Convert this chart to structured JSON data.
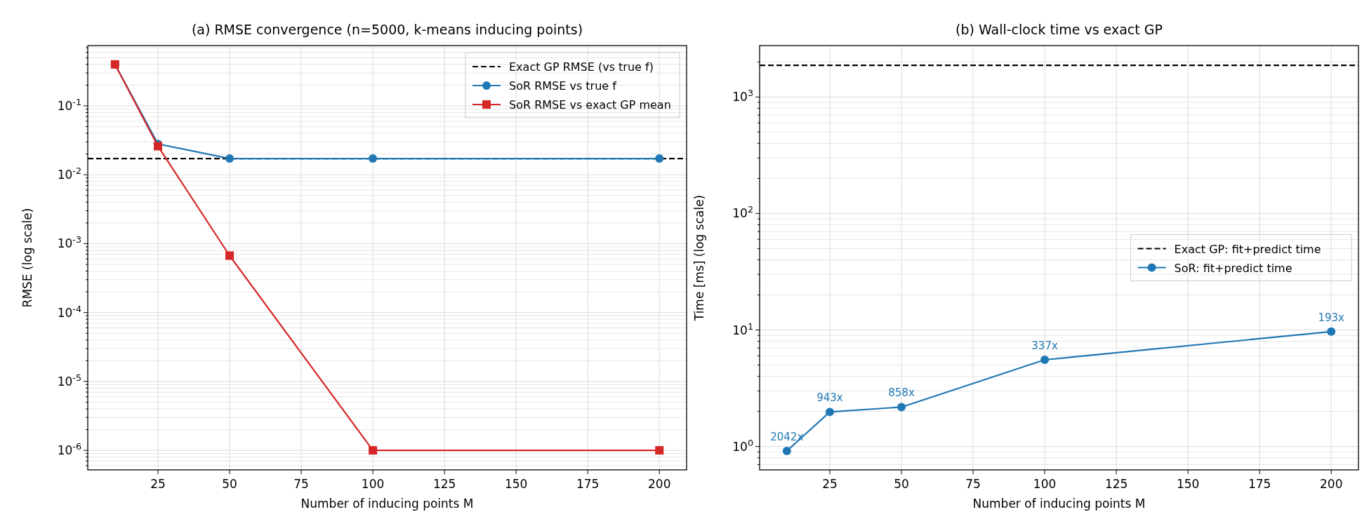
{
  "chart_data": [
    {
      "type": "line",
      "title": "(a) RMSE convergence  (n=5000, k-means inducing points)",
      "xlabel": "Number of inducing points M",
      "ylabel": "RMSE (log scale)",
      "log": "y",
      "grid": true,
      "legend": "top right",
      "x": [
        10,
        25,
        50,
        100,
        200
      ],
      "xlim": [
        0.5,
        209.5
      ],
      "xticks": [
        25,
        50,
        75,
        100,
        125,
        150,
        175,
        200
      ],
      "ylim": [
        5.2e-07,
        0.75
      ],
      "yticks": [
        {
          "value": 6e-07,
          "label": null
        },
        {
          "value": 7e-07,
          "label": null
        },
        {
          "value": 8e-07,
          "label": null
        },
        {
          "value": 9e-07,
          "label": null
        },
        {
          "value": 1e-06,
          "label": "10$^{-6}$"
        },
        {
          "value": 2e-06,
          "label": null
        },
        {
          "value": 3e-06,
          "label": null
        },
        {
          "value": 4e-06,
          "label": null
        },
        {
          "value": 5e-06,
          "label": null
        },
        {
          "value": 6e-06,
          "label": null
        },
        {
          "value": 7e-06,
          "label": null
        },
        {
          "value": 8e-06,
          "label": null
        },
        {
          "value": 9e-06,
          "label": null
        },
        {
          "value": 1e-05,
          "label": "10$^{-5}$"
        },
        {
          "value": 2e-05,
          "label": null
        },
        {
          "value": 3e-05,
          "label": null
        },
        {
          "value": 4e-05,
          "label": null
        },
        {
          "value": 5e-05,
          "label": null
        },
        {
          "value": 6e-05,
          "label": null
        },
        {
          "value": 7e-05,
          "label": null
        },
        {
          "value": 8e-05,
          "label": null
        },
        {
          "value": 9e-05,
          "label": null
        },
        {
          "value": 0.0001,
          "label": "10$^{-4}$"
        },
        {
          "value": 0.0002,
          "label": null
        },
        {
          "value": 0.0003,
          "label": null
        },
        {
          "value": 0.0004,
          "label": null
        },
        {
          "value": 0.0005,
          "label": null
        },
        {
          "value": 0.0006,
          "label": null
        },
        {
          "value": 0.0007,
          "label": null
        },
        {
          "value": 0.0008,
          "label": null
        },
        {
          "value": 0.0009,
          "label": null
        },
        {
          "value": 0.001,
          "label": "10$^{-3}$"
        },
        {
          "value": 0.002,
          "label": null
        },
        {
          "value": 0.003,
          "label": null
        },
        {
          "value": 0.004,
          "label": null
        },
        {
          "value": 0.005,
          "label": null
        },
        {
          "value": 0.006,
          "label": null
        },
        {
          "value": 0.007,
          "label": null
        },
        {
          "value": 0.008,
          "label": null
        },
        {
          "value": 0.009,
          "label": null
        },
        {
          "value": 0.01,
          "label": "10$^{-2}$"
        },
        {
          "value": 0.02,
          "label": null
        },
        {
          "value": 0.03,
          "label": null
        },
        {
          "value": 0.04,
          "label": null
        },
        {
          "value": 0.05,
          "label": null
        },
        {
          "value": 0.06,
          "label": null
        },
        {
          "value": 0.07,
          "label": null
        },
        {
          "value": 0.08,
          "label": null
        },
        {
          "value": 0.09,
          "label": null
        },
        {
          "value": 0.1,
          "label": "10$^{-1}$"
        },
        {
          "value": 0.2,
          "label": null
        },
        {
          "value": 0.3,
          "label": null
        },
        {
          "value": 0.4,
          "label": null
        },
        {
          "value": 0.5,
          "label": null
        },
        {
          "value": 0.6,
          "label": null
        },
        {
          "value": 0.7,
          "label": null
        }
      ],
      "ref_lines": [
        {
          "axis": "y",
          "value": 0.0172,
          "label": "Exact GP RMSE (vs true f)",
          "color": "#000000",
          "line_style": "dashed"
        }
      ],
      "series": [
        {
          "name": "SoR RMSE vs true f",
          "color": "#1f77b4",
          "marker": "circle",
          "values": [
            0.4,
            0.028,
            0.0172,
            0.0172,
            0.0172
          ]
        },
        {
          "name": "SoR RMSE vs exact GP mean",
          "color": "#d62728",
          "marker": "square",
          "values": [
            0.4,
            0.026,
            0.00067,
            1e-06,
            1e-06
          ]
        }
      ]
    },
    {
      "type": "line",
      "title": "(b) Wall-clock time vs exact GP",
      "xlabel": "Number of inducing points M",
      "ylabel": "Time [ms] (log scale)",
      "log": "y",
      "grid": true,
      "legend": "right",
      "x": [
        10,
        25,
        50,
        100,
        200
      ],
      "xlim": [
        0.5,
        209.5
      ],
      "xticks": [
        25,
        50,
        75,
        100,
        125,
        150,
        175,
        200
      ],
      "ylim": [
        0.63,
        2760
      ],
      "yticks": [
        {
          "value": 0.7,
          "label": null
        },
        {
          "value": 0.8,
          "label": null
        },
        {
          "value": 0.9,
          "label": null
        },
        {
          "value": 1,
          "label": "10$^{0}$"
        },
        {
          "value": 2,
          "label": null
        },
        {
          "value": 3,
          "label": null
        },
        {
          "value": 4,
          "label": null
        },
        {
          "value": 5,
          "label": null
        },
        {
          "value": 6,
          "label": null
        },
        {
          "value": 7,
          "label": null
        },
        {
          "value": 8,
          "label": null
        },
        {
          "value": 9,
          "label": null
        },
        {
          "value": 10,
          "label": "10$^{1}$"
        },
        {
          "value": 20,
          "label": null
        },
        {
          "value": 30,
          "label": null
        },
        {
          "value": 40,
          "label": null
        },
        {
          "value": 50,
          "label": null
        },
        {
          "value": 60,
          "label": null
        },
        {
          "value": 70,
          "label": null
        },
        {
          "value": 80,
          "label": null
        },
        {
          "value": 90,
          "label": null
        },
        {
          "value": 100,
          "label": "10$^{2}$"
        },
        {
          "value": 200,
          "label": null
        },
        {
          "value": 300,
          "label": null
        },
        {
          "value": 400,
          "label": null
        },
        {
          "value": 500,
          "label": null
        },
        {
          "value": 600,
          "label": null
        },
        {
          "value": 700,
          "label": null
        },
        {
          "value": 800,
          "label": null
        },
        {
          "value": 900,
          "label": null
        },
        {
          "value": 1000,
          "label": "10$^{3}$"
        },
        {
          "value": 2000,
          "label": null
        }
      ],
      "ref_lines": [
        {
          "axis": "y",
          "value": 1870,
          "label": "Exact GP: fit+predict time",
          "color": "#000000",
          "line_style": "dashed"
        }
      ],
      "series": [
        {
          "name": "SoR: fit+predict time",
          "color": "#1f77b4",
          "marker": "circle",
          "values": [
            0.916,
            1.98,
            2.18,
            5.55,
            9.69
          ]
        }
      ],
      "annotations": [
        {
          "text": "2042x",
          "x": 10,
          "y": 0.916
        },
        {
          "text": "943x",
          "x": 25,
          "y": 1.98
        },
        {
          "text": "858x",
          "x": 50,
          "y": 2.18
        },
        {
          "text": "337x",
          "x": 100,
          "y": 5.55
        },
        {
          "text": "193x",
          "x": 200,
          "y": 9.69
        }
      ]
    }
  ]
}
